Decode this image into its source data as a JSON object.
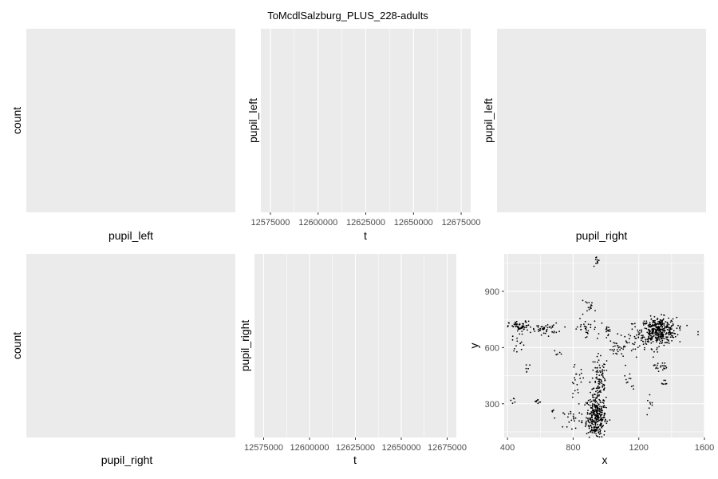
{
  "title": "ToMcdlSalzburg_PLUS_228-adults",
  "chart_data": [
    {
      "type": "histogram",
      "xlabel": "pupil_left",
      "ylabel": "count",
      "values": []
    },
    {
      "type": "line",
      "xlabel": "t",
      "ylabel": "pupil_left",
      "xlim": [
        12570000,
        12680000
      ],
      "x_ticks": [
        12575000,
        12600000,
        12625000,
        12650000,
        12675000
      ],
      "x_tick_labels": [
        "12575000",
        "12600000",
        "12625000",
        "12650000",
        "12675000"
      ],
      "values": []
    },
    {
      "type": "scatter",
      "xlabel": "pupil_right",
      "ylabel": "pupil_left",
      "values": []
    },
    {
      "type": "histogram",
      "xlabel": "pupil_right",
      "ylabel": "count",
      "values": []
    },
    {
      "type": "line",
      "xlabel": "t",
      "ylabel": "pupil_right",
      "xlim": [
        12570000,
        12680000
      ],
      "x_ticks": [
        12575000,
        12600000,
        12625000,
        12650000,
        12675000
      ],
      "x_tick_labels": [
        "12575000",
        "12600000",
        "12625000",
        "12650000",
        "12675000"
      ],
      "values": []
    },
    {
      "type": "scatter",
      "xlabel": "x",
      "ylabel": "y",
      "xlim": [
        380,
        1600
      ],
      "ylim": [
        120,
        1100
      ],
      "x_ticks": [
        400,
        800,
        1200,
        1600
      ],
      "x_tick_labels": [
        "400",
        "800",
        "1200",
        "1600"
      ],
      "y_ticks": [
        300,
        600,
        900
      ],
      "y_tick_labels": [
        "300",
        "600",
        "900"
      ],
      "clusters": [
        {
          "cx": 940,
          "cy": 230,
          "sx": 30,
          "sy": 60,
          "n": 320
        },
        {
          "cx": 960,
          "cy": 420,
          "sx": 28,
          "sy": 70,
          "n": 90
        },
        {
          "cx": 1320,
          "cy": 690,
          "sx": 55,
          "sy": 35,
          "n": 360
        },
        {
          "cx": 1240,
          "cy": 650,
          "sx": 50,
          "sy": 40,
          "n": 40
        },
        {
          "cx": 1330,
          "cy": 500,
          "sx": 20,
          "sy": 12,
          "n": 20
        },
        {
          "cx": 1350,
          "cy": 410,
          "sx": 15,
          "sy": 15,
          "n": 8
        },
        {
          "cx": 480,
          "cy": 710,
          "sx": 35,
          "sy": 15,
          "n": 60
        },
        {
          "cx": 630,
          "cy": 700,
          "sx": 40,
          "sy": 15,
          "n": 45
        },
        {
          "cx": 470,
          "cy": 630,
          "sx": 20,
          "sy": 25,
          "n": 15
        },
        {
          "cx": 870,
          "cy": 700,
          "sx": 40,
          "sy": 25,
          "n": 30
        },
        {
          "cx": 1010,
          "cy": 700,
          "sx": 15,
          "sy": 15,
          "n": 15
        },
        {
          "cx": 1060,
          "cy": 590,
          "sx": 20,
          "sy": 20,
          "n": 20
        },
        {
          "cx": 1140,
          "cy": 610,
          "sx": 40,
          "sy": 40,
          "n": 25
        },
        {
          "cx": 900,
          "cy": 820,
          "sx": 30,
          "sy": 15,
          "n": 15
        },
        {
          "cx": 950,
          "cy": 1060,
          "sx": 8,
          "sy": 15,
          "n": 10
        },
        {
          "cx": 800,
          "cy": 220,
          "sx": 30,
          "sy": 25,
          "n": 25
        },
        {
          "cx": 820,
          "cy": 420,
          "sx": 25,
          "sy": 40,
          "n": 20
        },
        {
          "cx": 1150,
          "cy": 420,
          "sx": 20,
          "sy": 25,
          "n": 10
        },
        {
          "cx": 1270,
          "cy": 300,
          "sx": 15,
          "sy": 20,
          "n": 8
        },
        {
          "cx": 580,
          "cy": 310,
          "sx": 10,
          "sy": 10,
          "n": 8
        },
        {
          "cx": 440,
          "cy": 320,
          "sx": 8,
          "sy": 8,
          "n": 5
        },
        {
          "cx": 680,
          "cy": 260,
          "sx": 10,
          "sy": 8,
          "n": 4
        },
        {
          "cx": 520,
          "cy": 480,
          "sx": 10,
          "sy": 20,
          "n": 6
        },
        {
          "cx": 700,
          "cy": 570,
          "sx": 10,
          "sy": 15,
          "n": 6
        },
        {
          "cx": 1560,
          "cy": 680,
          "sx": 5,
          "sy": 5,
          "n": 2
        }
      ]
    }
  ]
}
